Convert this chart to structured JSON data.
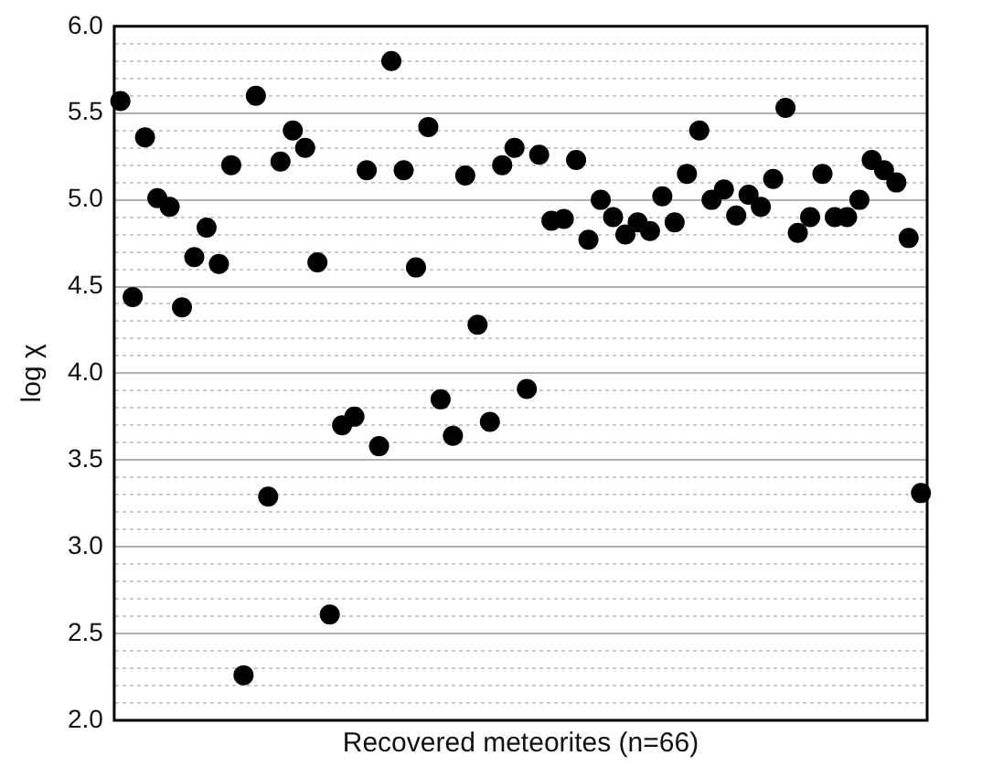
{
  "chart_data": {
    "type": "scatter",
    "xlabel": "Recovered meteorites (n=66)",
    "ylabel": "log χ",
    "categories": [
      null,
      null,
      null,
      null,
      null,
      null,
      null,
      null,
      null,
      null,
      null,
      null,
      null,
      null,
      null,
      null,
      null,
      null,
      null,
      null,
      null,
      null,
      null,
      null,
      null,
      null,
      null,
      null,
      null,
      null,
      null,
      null,
      null,
      null,
      null,
      null,
      null,
      null,
      null,
      null,
      null,
      null,
      null,
      null,
      null,
      null,
      null,
      null,
      null,
      null,
      null,
      null,
      null,
      null,
      null,
      null,
      null,
      null,
      null,
      null,
      null,
      null,
      null,
      null,
      null,
      null
    ],
    "series": [
      {
        "color": "#000000",
        "values": [
          5.57,
          4.44,
          5.36,
          5.01,
          4.96,
          4.38,
          4.67,
          4.84,
          4.63,
          5.2,
          2.26,
          5.6,
          3.29,
          5.22,
          5.4,
          5.3,
          4.64,
          2.61,
          3.7,
          3.75,
          5.17,
          3.58,
          5.8,
          5.17,
          4.61,
          5.42,
          3.85,
          3.64,
          5.14,
          4.28,
          3.72,
          5.2,
          5.3,
          3.91,
          5.26,
          4.88,
          4.89,
          5.23,
          4.77,
          5.0,
          4.9,
          4.8,
          4.87,
          4.82,
          5.02,
          4.87,
          5.15,
          5.4,
          5.0,
          5.06,
          4.91,
          5.03,
          4.96,
          5.12,
          5.53,
          4.81,
          4.9,
          5.15,
          4.9,
          4.9,
          5.0,
          5.23,
          5.17,
          5.1,
          4.78,
          3.31
        ]
      }
    ],
    "ylim": [
      2.0,
      6.0
    ],
    "yticks": [
      {
        "value": 2.0,
        "label": "2.0"
      },
      {
        "value": 2.1,
        "label": null
      },
      {
        "value": 2.2,
        "label": null
      },
      {
        "value": 2.3,
        "label": null
      },
      {
        "value": 2.4,
        "label": null
      },
      {
        "value": 2.5,
        "label": "2.5"
      },
      {
        "value": 2.6,
        "label": null
      },
      {
        "value": 2.7,
        "label": null
      },
      {
        "value": 2.8,
        "label": null
      },
      {
        "value": 2.9,
        "label": null
      },
      {
        "value": 3.0,
        "label": "3.0"
      },
      {
        "value": 3.1,
        "label": null
      },
      {
        "value": 3.2,
        "label": null
      },
      {
        "value": 3.3,
        "label": null
      },
      {
        "value": 3.4,
        "label": null
      },
      {
        "value": 3.5,
        "label": "3.5"
      },
      {
        "value": 3.6,
        "label": null
      },
      {
        "value": 3.7,
        "label": null
      },
      {
        "value": 3.8,
        "label": null
      },
      {
        "value": 3.9,
        "label": null
      },
      {
        "value": 4.0,
        "label": "4.0"
      },
      {
        "value": 4.1,
        "label": null
      },
      {
        "value": 4.2,
        "label": null
      },
      {
        "value": 4.3,
        "label": null
      },
      {
        "value": 4.4,
        "label": null
      },
      {
        "value": 4.5,
        "label": "4.5"
      },
      {
        "value": 4.6,
        "label": null
      },
      {
        "value": 4.7,
        "label": null
      },
      {
        "value": 4.8,
        "label": null
      },
      {
        "value": 4.9,
        "label": null
      },
      {
        "value": 5.0,
        "label": "5.0"
      },
      {
        "value": 5.1,
        "label": null
      },
      {
        "value": 5.2,
        "label": null
      },
      {
        "value": 5.3,
        "label": null
      },
      {
        "value": 5.4,
        "label": null
      },
      {
        "value": 5.5,
        "label": "5.5"
      },
      {
        "value": 5.6,
        "label": null
      },
      {
        "value": 5.7,
        "label": null
      },
      {
        "value": 5.8,
        "label": null
      },
      {
        "value": 5.9,
        "label": null
      },
      {
        "value": 6.0,
        "label": "6.0"
      }
    ],
    "grid": "y",
    "marker": "circle",
    "legend": false,
    "tick_labels": "y"
  }
}
